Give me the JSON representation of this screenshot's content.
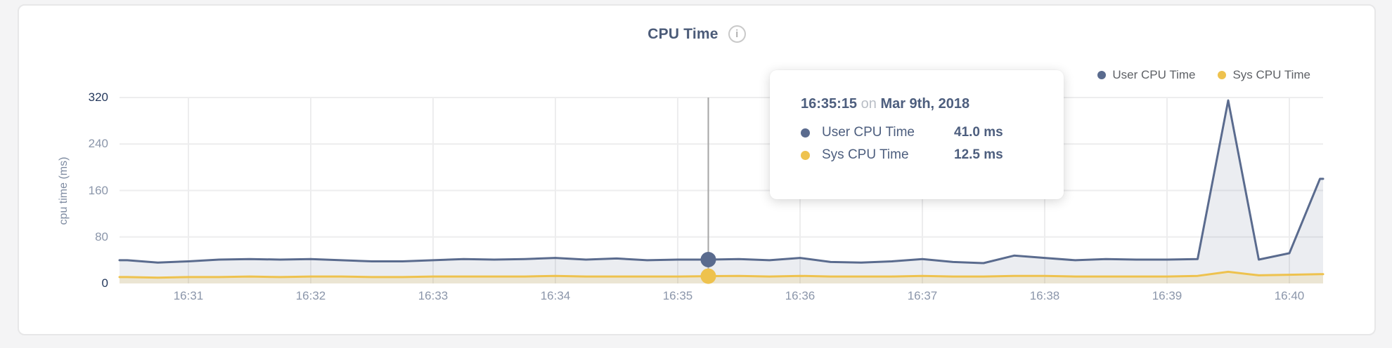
{
  "page": {
    "background": "#f4f4f5",
    "card_background": "#ffffff"
  },
  "header": {
    "title": "CPU Time",
    "info_icon": "i"
  },
  "legend": {
    "items": [
      {
        "label": "User CPU Time",
        "color": "#5a6b8e"
      },
      {
        "label": "Sys CPU Time",
        "color": "#eec24e"
      }
    ]
  },
  "tooltip": {
    "time": "16:35:15",
    "conjunction": "on",
    "date": "Mar 9th, 2018",
    "rows": [
      {
        "label": "User CPU Time",
        "value": "41.0 ms",
        "color": "#5a6b8e"
      },
      {
        "label": "Sys CPU Time",
        "value": "12.5 ms",
        "color": "#eec24e"
      }
    ]
  },
  "chart_data": {
    "type": "area",
    "title": "CPU Time",
    "xlabel": "",
    "ylabel": "cpu time (ms)",
    "ylim": [
      0,
      320
    ],
    "y_ticks": [
      0,
      80,
      160,
      240,
      320
    ],
    "x_tick_labels": [
      "16:31",
      "16:32",
      "16:33",
      "16:34",
      "16:35",
      "16:36",
      "16:37",
      "16:38",
      "16:39",
      "16:40"
    ],
    "grid": true,
    "legend_position": "top-right",
    "x": [
      "16:30:30",
      "16:30:45",
      "16:31:00",
      "16:31:15",
      "16:31:30",
      "16:31:45",
      "16:32:00",
      "16:32:15",
      "16:32:30",
      "16:32:45",
      "16:33:00",
      "16:33:15",
      "16:33:30",
      "16:33:45",
      "16:34:00",
      "16:34:15",
      "16:34:30",
      "16:34:45",
      "16:35:00",
      "16:35:15",
      "16:35:30",
      "16:35:45",
      "16:36:00",
      "16:36:15",
      "16:36:30",
      "16:36:45",
      "16:37:00",
      "16:37:15",
      "16:37:30",
      "16:37:45",
      "16:38:00",
      "16:38:15",
      "16:38:30",
      "16:38:45",
      "16:39:00",
      "16:39:15",
      "16:39:30",
      "16:39:45",
      "16:40:00",
      "16:40:15"
    ],
    "series": [
      {
        "name": "User CPU Time",
        "color": "#5a6b8e",
        "fill": "rgba(99,114,148,0.13)",
        "values": [
          40,
          36,
          38,
          41,
          42,
          41,
          42,
          40,
          38,
          38,
          40,
          42,
          41,
          42,
          44,
          41,
          43,
          40,
          41,
          41,
          42,
          40,
          44,
          37,
          36,
          38,
          42,
          37,
          35,
          48,
          44,
          40,
          42,
          41,
          41,
          42,
          315,
          41,
          52,
          180
        ]
      },
      {
        "name": "Sys CPU Time",
        "color": "#eec24e",
        "fill": "rgba(238,194,78,0.18)",
        "values": [
          11,
          10,
          11,
          11,
          12,
          11,
          12,
          12,
          11,
          11,
          12,
          12,
          12,
          12,
          13,
          12,
          12,
          12,
          12,
          12.5,
          13,
          12,
          13,
          12,
          12,
          12,
          13,
          12,
          12,
          13,
          13,
          12,
          12,
          12,
          12,
          13,
          20,
          14,
          15,
          16
        ]
      }
    ],
    "hover": {
      "time": "16:35:15",
      "values": [
        41.0,
        12.5
      ]
    }
  }
}
